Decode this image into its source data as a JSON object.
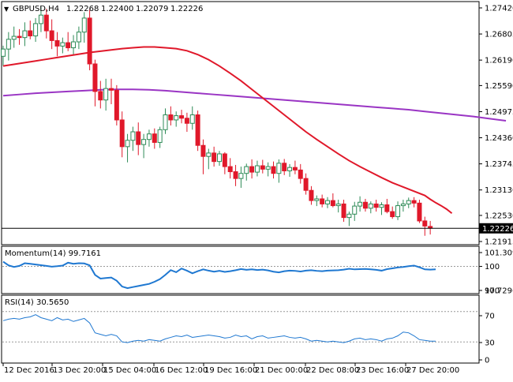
{
  "header": {
    "symbol": "GBPUSD,H4",
    "open": "1.22268",
    "high": "1.22400",
    "low": "1.22079",
    "close": "1.22226"
  },
  "colors": {
    "bull": "#2e8b57",
    "bear": "#e0182a",
    "ma_fast": "#e0182a",
    "ma_slow": "#9a35c4",
    "indicator": "#1f78d1",
    "grid_dashed": "#999999",
    "frame": "#000000"
  },
  "chart_data": [
    {
      "type": "candlestick",
      "panel": "main",
      "y_ticks": [
        "1.27420",
        "1.26805",
        "1.26190",
        "1.25590",
        "1.24975",
        "1.24360",
        "1.23745",
        "1.23130",
        "1.22530",
        "1.21915"
      ],
      "current_price_label": "1.22226",
      "ylim": [
        1.21915,
        1.2742
      ],
      "candles": [
        {
          "o": 1.2628,
          "h": 1.2653,
          "l": 1.2605,
          "c": 1.2645
        },
        {
          "o": 1.2645,
          "h": 1.2685,
          "l": 1.2618,
          "c": 1.2668
        },
        {
          "o": 1.2668,
          "h": 1.2698,
          "l": 1.2648,
          "c": 1.2675
        },
        {
          "o": 1.2675,
          "h": 1.2692,
          "l": 1.2655,
          "c": 1.2672
        },
        {
          "o": 1.2672,
          "h": 1.2708,
          "l": 1.2652,
          "c": 1.2688
        },
        {
          "o": 1.2688,
          "h": 1.2712,
          "l": 1.2668,
          "c": 1.2676
        },
        {
          "o": 1.2676,
          "h": 1.2718,
          "l": 1.2662,
          "c": 1.2705
        },
        {
          "o": 1.2705,
          "h": 1.2745,
          "l": 1.2685,
          "c": 1.2725
        },
        {
          "o": 1.2725,
          "h": 1.274,
          "l": 1.267,
          "c": 1.2688
        },
        {
          "o": 1.2688,
          "h": 1.2715,
          "l": 1.2645,
          "c": 1.2665
        },
        {
          "o": 1.2665,
          "h": 1.2685,
          "l": 1.2628,
          "c": 1.2652
        },
        {
          "o": 1.2652,
          "h": 1.2672,
          "l": 1.2635,
          "c": 1.266
        },
        {
          "o": 1.266,
          "h": 1.2685,
          "l": 1.264,
          "c": 1.2648
        },
        {
          "o": 1.2648,
          "h": 1.2678,
          "l": 1.263,
          "c": 1.2662
        },
        {
          "o": 1.2662,
          "h": 1.2698,
          "l": 1.2645,
          "c": 1.2685
        },
        {
          "o": 1.2685,
          "h": 1.2732,
          "l": 1.266,
          "c": 1.2718
        },
        {
          "o": 1.2718,
          "h": 1.2738,
          "l": 1.2595,
          "c": 1.261
        },
        {
          "o": 1.261,
          "h": 1.262,
          "l": 1.251,
          "c": 1.2545
        },
        {
          "o": 1.2545,
          "h": 1.257,
          "l": 1.2505,
          "c": 1.2525
        },
        {
          "o": 1.2525,
          "h": 1.2575,
          "l": 1.25,
          "c": 1.2552
        },
        {
          "o": 1.2552,
          "h": 1.2575,
          "l": 1.2515,
          "c": 1.2548
        },
        {
          "o": 1.2548,
          "h": 1.256,
          "l": 1.2465,
          "c": 1.2478
        },
        {
          "o": 1.2478,
          "h": 1.2498,
          "l": 1.239,
          "c": 1.2415
        },
        {
          "o": 1.2415,
          "h": 1.2445,
          "l": 1.2378,
          "c": 1.243
        },
        {
          "o": 1.243,
          "h": 1.2462,
          "l": 1.2405,
          "c": 1.245
        },
        {
          "o": 1.245,
          "h": 1.2472,
          "l": 1.2395,
          "c": 1.242
        },
        {
          "o": 1.242,
          "h": 1.2445,
          "l": 1.2388,
          "c": 1.2432
        },
        {
          "o": 1.2432,
          "h": 1.2455,
          "l": 1.2415,
          "c": 1.2445
        },
        {
          "o": 1.2445,
          "h": 1.2458,
          "l": 1.241,
          "c": 1.2425
        },
        {
          "o": 1.2425,
          "h": 1.2462,
          "l": 1.2412,
          "c": 1.2455
        },
        {
          "o": 1.2455,
          "h": 1.2505,
          "l": 1.2445,
          "c": 1.249
        },
        {
          "o": 1.249,
          "h": 1.251,
          "l": 1.2465,
          "c": 1.2478
        },
        {
          "o": 1.2478,
          "h": 1.2498,
          "l": 1.2462,
          "c": 1.2488
        },
        {
          "o": 1.2488,
          "h": 1.2502,
          "l": 1.247,
          "c": 1.2482
        },
        {
          "o": 1.2482,
          "h": 1.2495,
          "l": 1.245,
          "c": 1.247
        },
        {
          "o": 1.247,
          "h": 1.251,
          "l": 1.2455,
          "c": 1.249
        },
        {
          "o": 1.249,
          "h": 1.25,
          "l": 1.2405,
          "c": 1.2418
        },
        {
          "o": 1.2418,
          "h": 1.2432,
          "l": 1.235,
          "c": 1.2392
        },
        {
          "o": 1.2392,
          "h": 1.241,
          "l": 1.2362,
          "c": 1.24
        },
        {
          "o": 1.24,
          "h": 1.2415,
          "l": 1.2368,
          "c": 1.238
        },
        {
          "o": 1.238,
          "h": 1.2405,
          "l": 1.237,
          "c": 1.2398
        },
        {
          "o": 1.2398,
          "h": 1.2402,
          "l": 1.235,
          "c": 1.2368
        },
        {
          "o": 1.2368,
          "h": 1.2388,
          "l": 1.234,
          "c": 1.2356
        },
        {
          "o": 1.2356,
          "h": 1.2372,
          "l": 1.2322,
          "c": 1.234
        },
        {
          "o": 1.234,
          "h": 1.2368,
          "l": 1.2318,
          "c": 1.2352
        },
        {
          "o": 1.2352,
          "h": 1.2375,
          "l": 1.2335,
          "c": 1.2368
        },
        {
          "o": 1.2368,
          "h": 1.2385,
          "l": 1.234,
          "c": 1.2355
        },
        {
          "o": 1.2355,
          "h": 1.2382,
          "l": 1.2345,
          "c": 1.237
        },
        {
          "o": 1.237,
          "h": 1.2384,
          "l": 1.2352,
          "c": 1.2362
        },
        {
          "o": 1.2362,
          "h": 1.2378,
          "l": 1.2345,
          "c": 1.2368
        },
        {
          "o": 1.2368,
          "h": 1.238,
          "l": 1.234,
          "c": 1.2352
        },
        {
          "o": 1.2352,
          "h": 1.2385,
          "l": 1.233,
          "c": 1.2376
        },
        {
          "o": 1.2376,
          "h": 1.2386,
          "l": 1.2348,
          "c": 1.2358
        },
        {
          "o": 1.2358,
          "h": 1.2374,
          "l": 1.2344,
          "c": 1.2366
        },
        {
          "o": 1.2366,
          "h": 1.2382,
          "l": 1.235,
          "c": 1.236
        },
        {
          "o": 1.236,
          "h": 1.2374,
          "l": 1.2328,
          "c": 1.234
        },
        {
          "o": 1.234,
          "h": 1.2352,
          "l": 1.2302,
          "c": 1.2312
        },
        {
          "o": 1.2312,
          "h": 1.2322,
          "l": 1.2278,
          "c": 1.2288
        },
        {
          "o": 1.2288,
          "h": 1.23,
          "l": 1.2275,
          "c": 1.2292
        },
        {
          "o": 1.2292,
          "h": 1.2302,
          "l": 1.2272,
          "c": 1.228
        },
        {
          "o": 1.228,
          "h": 1.2296,
          "l": 1.227,
          "c": 1.2288
        },
        {
          "o": 1.2288,
          "h": 1.2305,
          "l": 1.2272,
          "c": 1.2276
        },
        {
          "o": 1.2276,
          "h": 1.229,
          "l": 1.226,
          "c": 1.228
        },
        {
          "o": 1.228,
          "h": 1.229,
          "l": 1.2238,
          "c": 1.2248
        },
        {
          "o": 1.2248,
          "h": 1.2262,
          "l": 1.2228,
          "c": 1.2256
        },
        {
          "o": 1.2256,
          "h": 1.2285,
          "l": 1.224,
          "c": 1.2275
        },
        {
          "o": 1.2275,
          "h": 1.2298,
          "l": 1.2262,
          "c": 1.2284
        },
        {
          "o": 1.2284,
          "h": 1.2292,
          "l": 1.2262,
          "c": 1.227
        },
        {
          "o": 1.227,
          "h": 1.2286,
          "l": 1.2258,
          "c": 1.228
        },
        {
          "o": 1.228,
          "h": 1.229,
          "l": 1.2262,
          "c": 1.2272
        },
        {
          "o": 1.2272,
          "h": 1.2284,
          "l": 1.2254,
          "c": 1.2278
        },
        {
          "o": 1.2278,
          "h": 1.2292,
          "l": 1.2258,
          "c": 1.2262
        },
        {
          "o": 1.2262,
          "h": 1.2274,
          "l": 1.2245,
          "c": 1.225
        },
        {
          "o": 1.225,
          "h": 1.2286,
          "l": 1.2242,
          "c": 1.2276
        },
        {
          "o": 1.2276,
          "h": 1.229,
          "l": 1.2262,
          "c": 1.228
        },
        {
          "o": 1.228,
          "h": 1.2295,
          "l": 1.227,
          "c": 1.2288
        },
        {
          "o": 1.2288,
          "h": 1.2296,
          "l": 1.2272,
          "c": 1.2282
        },
        {
          "o": 1.2282,
          "h": 1.229,
          "l": 1.2235,
          "c": 1.224
        },
        {
          "o": 1.224,
          "h": 1.225,
          "l": 1.2205,
          "c": 1.2228
        },
        {
          "o": 1.2227,
          "h": 1.224,
          "l": 1.2208,
          "c": 1.2223
        }
      ],
      "ma_fast": [
        1.2605,
        1.2609,
        1.2613,
        1.2617,
        1.2621,
        1.2625,
        1.2629,
        1.2633,
        1.2637,
        1.264,
        1.2643,
        1.2646,
        1.2648,
        1.265,
        1.265,
        1.2648,
        1.2646,
        1.2641,
        1.2632,
        1.262,
        1.2605,
        1.2588,
        1.257,
        1.255,
        1.253,
        1.251,
        1.249,
        1.247,
        1.245,
        1.2432,
        1.2415,
        1.2398,
        1.2382,
        1.2368,
        1.2355,
        1.2342,
        1.233,
        1.232,
        1.231,
        1.23,
        1.2291,
        1.2283,
        1.2276,
        1.2268,
        1.2258
      ],
      "ma_fast_x": [
        0,
        2,
        4,
        6,
        8,
        10,
        12,
        14,
        16,
        18,
        20,
        22,
        24,
        26,
        28,
        30,
        32,
        34,
        36,
        38,
        40,
        42,
        44,
        46,
        48,
        50,
        52,
        54,
        56,
        58,
        60,
        62,
        64,
        66,
        68,
        70,
        72,
        74,
        76,
        78,
        79,
        80,
        81,
        82,
        83
      ],
      "ma_slow": [
        1.2535,
        1.2538,
        1.2541,
        1.2543,
        1.2545,
        1.2547,
        1.2549,
        1.255,
        1.255,
        1.2549,
        1.2547,
        1.2544,
        1.2541,
        1.2538,
        1.2535,
        1.2532,
        1.2529,
        1.2526,
        1.2523,
        1.252,
        1.2517,
        1.2514,
        1.2511,
        1.2508,
        1.2505,
        1.2502,
        1.2498,
        1.2494,
        1.249,
        1.2486,
        1.2481,
        1.2476
      ],
      "ma_slow_x": [
        0,
        3,
        6,
        9,
        12,
        15,
        18,
        21,
        24,
        27,
        30,
        33,
        36,
        39,
        42,
        45,
        48,
        51,
        54,
        57,
        60,
        63,
        66,
        69,
        72,
        75,
        78,
        81,
        84,
        87,
        90,
        93
      ]
    },
    {
      "type": "line",
      "panel": "momentum",
      "title": "Momentum(14) 99.7161",
      "y_ticks": [
        "101.309",
        "100",
        "97.7296"
      ],
      "ylim": [
        97.7296,
        101.309
      ],
      "values": [
        100.45,
        100.1,
        99.95,
        100.05,
        100.3,
        100.25,
        100.18,
        100.12,
        100.05,
        99.98,
        100.02,
        100.08,
        100.35,
        100.25,
        100.3,
        100.28,
        100.1,
        99.2,
        98.85,
        98.9,
        98.95,
        98.65,
        98.1,
        97.95,
        98.05,
        98.15,
        98.25,
        98.35,
        98.55,
        98.8,
        99.2,
        99.65,
        99.45,
        99.8,
        99.6,
        99.35,
        99.55,
        99.72,
        99.6,
        99.5,
        99.58,
        99.48,
        99.55,
        99.64,
        99.75,
        99.68,
        99.72,
        99.66,
        99.7,
        99.62,
        99.5,
        99.44,
        99.55,
        99.6,
        99.58,
        99.52,
        99.6,
        99.64,
        99.58,
        99.55,
        99.6,
        99.62,
        99.64,
        99.7,
        99.78,
        99.72,
        99.74,
        99.76,
        99.72,
        99.68,
        99.6,
        99.74,
        99.82,
        99.9,
        99.95,
        100.02,
        100.08,
        99.92,
        99.72,
        99.7,
        99.72
      ]
    },
    {
      "type": "line",
      "panel": "rsi",
      "title": "RSI(14) 30.5650",
      "y_ticks": [
        "100",
        "70",
        "30",
        "0"
      ],
      "ylim": [
        0,
        100
      ],
      "levels": [
        70,
        30
      ],
      "values": [
        58,
        60,
        61,
        60,
        62,
        63,
        66,
        62,
        60,
        58,
        62,
        59,
        60,
        57,
        59,
        61,
        55,
        42,
        40,
        38,
        40,
        38,
        30,
        29,
        31,
        32,
        31,
        33,
        32,
        31,
        34,
        36,
        38,
        37,
        39,
        36,
        37,
        38,
        39,
        38,
        37,
        35,
        36,
        39,
        37,
        38,
        34,
        37,
        38,
        35,
        36,
        37,
        38,
        36,
        35,
        36,
        34,
        31,
        32,
        31,
        30,
        31,
        30,
        29,
        31,
        34,
        35,
        33,
        34,
        33,
        31,
        34,
        35,
        38,
        43,
        42,
        38,
        33,
        32,
        31,
        31
      ]
    }
  ],
  "x_axis": {
    "labels": [
      "12 Dec 2016",
      "13 Dec 20:00",
      "15 Dec 04:00",
      "16 Dec 12:00",
      "19 Dec 16:00",
      "21 Dec 00:00",
      "22 Dec 08:00",
      "23 Dec 16:00",
      "27 Dec 20:00"
    ]
  }
}
